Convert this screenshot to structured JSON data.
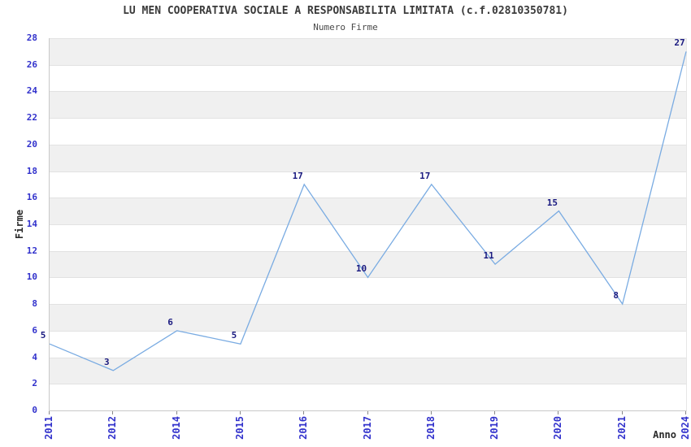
{
  "chart_data": {
    "type": "line",
    "title": "LU MEN COOPERATIVA SOCIALE A RESPONSABILITA LIMITATA (c.f.02810350781)",
    "subtitle": "Numero Firme",
    "xlabel": "Anno",
    "ylabel": "Firme",
    "categories": [
      "2011",
      "2012",
      "2014",
      "2015",
      "2016",
      "2017",
      "2018",
      "2019",
      "2020",
      "2021",
      "2024"
    ],
    "series": [
      {
        "name": "Numero Firme",
        "values": [
          5,
          3,
          6,
          5,
          17,
          10,
          17,
          11,
          15,
          8,
          27
        ]
      }
    ],
    "data_labels_shown": true,
    "ylim": [
      0,
      28
    ],
    "y_ticks": [
      0,
      2,
      4,
      6,
      8,
      10,
      12,
      14,
      16,
      18,
      20,
      22,
      24,
      26,
      28
    ],
    "grid": "alternating-horizontal-bands",
    "legend": "none",
    "markers": "none",
    "colors": {
      "line": "#79ABE2",
      "tick_label": "#3232CC",
      "data_label": "#1A1A80",
      "band_fill": "#F0F0F0",
      "gridline": "#E2E2E2",
      "axis_line": "#C9C9C9",
      "title": "#3A3A3A",
      "subtitle": "#4A4A4A",
      "axis_title": "#2A2A2A",
      "background": "#FFFFFF"
    }
  }
}
